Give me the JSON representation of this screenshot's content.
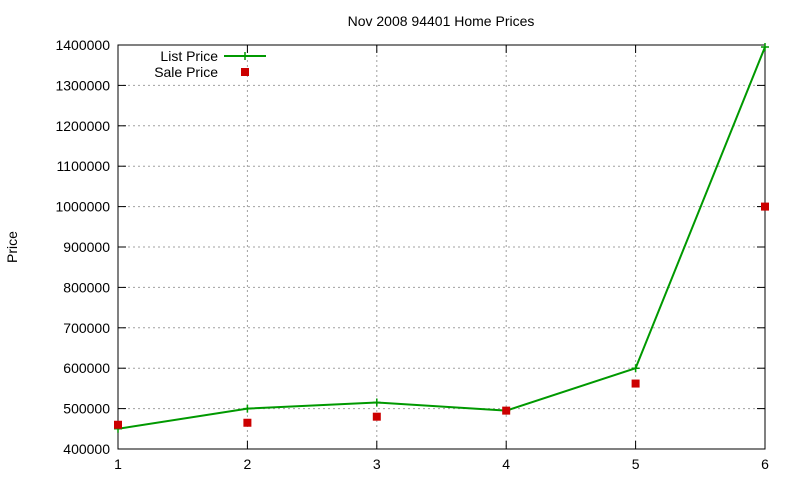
{
  "chart_data": {
    "type": "line",
    "title": "Nov 2008 94401 Home Prices",
    "xlabel": "",
    "ylabel": "Price",
    "x": [
      1,
      2,
      3,
      4,
      5,
      6
    ],
    "xlim": [
      1,
      6
    ],
    "ylim": [
      400000,
      1400000
    ],
    "x_ticks": [
      1,
      2,
      3,
      4,
      5,
      6
    ],
    "y_ticks": [
      400000,
      500000,
      600000,
      700000,
      800000,
      900000,
      1000000,
      1100000,
      1200000,
      1300000,
      1400000
    ],
    "grid": true,
    "legend_position": "top-left",
    "series": [
      {
        "name": "List Price",
        "style": "line+cross",
        "color": "#009900",
        "values": [
          450000,
          500000,
          515000,
          495000,
          600000,
          1395000
        ]
      },
      {
        "name": "Sale Price",
        "style": "square",
        "color": "#cc0000",
        "values": [
          460000,
          465000,
          480000,
          495000,
          562000,
          1000000
        ]
      }
    ]
  }
}
